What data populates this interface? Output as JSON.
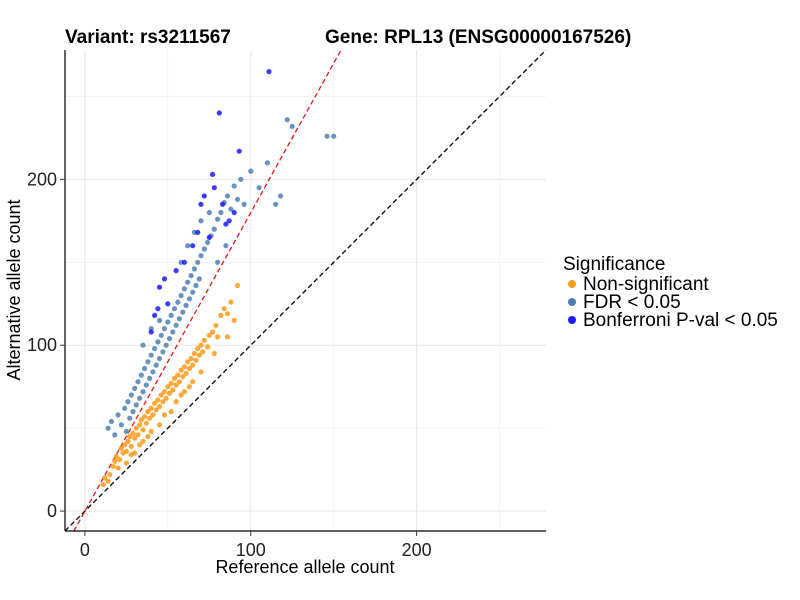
{
  "chart_data": {
    "type": "scatter",
    "title_left": "Variant: rs3211567",
    "title_right": "Gene: RPL13 (ENSG00000167526)",
    "xlabel": "Reference allele count",
    "ylabel": "Alternative allele count",
    "xlim": [
      -12,
      278
    ],
    "ylim": [
      -12,
      278
    ],
    "xticks": [
      0,
      100,
      200
    ],
    "yticks": [
      0,
      100,
      200
    ],
    "grid": true,
    "reference_lines": [
      {
        "name": "diagonal",
        "slope": 1.0,
        "color": "#000000",
        "dash": true
      },
      {
        "name": "fitted",
        "slope": 1.8,
        "color": "#e41a1c",
        "dash": true
      }
    ],
    "legend": {
      "title": "Significance",
      "position": "right",
      "entries": [
        {
          "label": "Non-significant",
          "color": "#ff9a1a"
        },
        {
          "label": "FDR < 0.05",
          "color": "#4f7fb0"
        },
        {
          "label": "Bonferroni P-val < 0.05",
          "color": "#1a1aff"
        }
      ]
    },
    "series": [
      {
        "name": "Non-significant",
        "color": "#ff9a1a",
        "points": [
          [
            11,
            16
          ],
          [
            12,
            20
          ],
          [
            14,
            18
          ],
          [
            15,
            22
          ],
          [
            17,
            27
          ],
          [
            18,
            30
          ],
          [
            19,
            33
          ],
          [
            20,
            26
          ],
          [
            21,
            31
          ],
          [
            22,
            38
          ],
          [
            23,
            35
          ],
          [
            24,
            40
          ],
          [
            25,
            36
          ],
          [
            26,
            42
          ],
          [
            27,
            45
          ],
          [
            28,
            39
          ],
          [
            29,
            47
          ],
          [
            30,
            44
          ],
          [
            31,
            50
          ],
          [
            32,
            46
          ],
          [
            33,
            52
          ],
          [
            34,
            55
          ],
          [
            35,
            49
          ],
          [
            36,
            57
          ],
          [
            37,
            53
          ],
          [
            38,
            60
          ],
          [
            39,
            56
          ],
          [
            40,
            62
          ],
          [
            41,
            58
          ],
          [
            42,
            65
          ],
          [
            43,
            61
          ],
          [
            44,
            67
          ],
          [
            45,
            63
          ],
          [
            46,
            70
          ],
          [
            47,
            66
          ],
          [
            48,
            72
          ],
          [
            49,
            68
          ],
          [
            50,
            75
          ],
          [
            51,
            71
          ],
          [
            52,
            77
          ],
          [
            53,
            73
          ],
          [
            54,
            80
          ],
          [
            55,
            76
          ],
          [
            56,
            82
          ],
          [
            57,
            78
          ],
          [
            58,
            85
          ],
          [
            59,
            81
          ],
          [
            60,
            87
          ],
          [
            61,
            83
          ],
          [
            62,
            90
          ],
          [
            63,
            86
          ],
          [
            64,
            92
          ],
          [
            65,
            88
          ],
          [
            66,
            95
          ],
          [
            67,
            91
          ],
          [
            68,
            98
          ],
          [
            69,
            94
          ],
          [
            70,
            100
          ],
          [
            71,
            96
          ],
          [
            72,
            103
          ],
          [
            74,
            99
          ],
          [
            75,
            106
          ],
          [
            77,
            108
          ],
          [
            79,
            112
          ],
          [
            80,
            105
          ],
          [
            82,
            118
          ],
          [
            84,
            122
          ],
          [
            86,
            119
          ],
          [
            88,
            126
          ],
          [
            90,
            115
          ],
          [
            92,
            136
          ],
          [
            86,
            105
          ],
          [
            60,
            72
          ],
          [
            52,
            60
          ],
          [
            45,
            52
          ],
          [
            38,
            45
          ],
          [
            30,
            35
          ],
          [
            25,
            29
          ],
          [
            35,
            42
          ],
          [
            40,
            48
          ],
          [
            55,
            66
          ],
          [
            65,
            78
          ],
          [
            70,
            84
          ],
          [
            78,
            95
          ],
          [
            33,
            40
          ],
          [
            28,
            34
          ],
          [
            48,
            58
          ],
          [
            58,
            70
          ],
          [
            63,
            75
          ]
        ]
      },
      {
        "name": "FDR < 0.05",
        "color": "#4f7fb0",
        "points": [
          [
            14,
            50
          ],
          [
            16,
            54
          ],
          [
            18,
            46
          ],
          [
            20,
            58
          ],
          [
            22,
            52
          ],
          [
            24,
            62
          ],
          [
            25,
            48
          ],
          [
            26,
            66
          ],
          [
            27,
            56
          ],
          [
            28,
            70
          ],
          [
            29,
            60
          ],
          [
            30,
            74
          ],
          [
            31,
            64
          ],
          [
            32,
            78
          ],
          [
            33,
            68
          ],
          [
            34,
            82
          ],
          [
            35,
            72
          ],
          [
            36,
            86
          ],
          [
            37,
            76
          ],
          [
            38,
            90
          ],
          [
            39,
            80
          ],
          [
            40,
            94
          ],
          [
            41,
            84
          ],
          [
            42,
            98
          ],
          [
            43,
            88
          ],
          [
            44,
            102
          ],
          [
            45,
            92
          ],
          [
            46,
            106
          ],
          [
            47,
            96
          ],
          [
            48,
            110
          ],
          [
            49,
            100
          ],
          [
            50,
            114
          ],
          [
            51,
            104
          ],
          [
            52,
            118
          ],
          [
            53,
            108
          ],
          [
            54,
            122
          ],
          [
            55,
            112
          ],
          [
            56,
            126
          ],
          [
            57,
            116
          ],
          [
            58,
            130
          ],
          [
            59,
            120
          ],
          [
            60,
            134
          ],
          [
            61,
            124
          ],
          [
            62,
            138
          ],
          [
            63,
            128
          ],
          [
            64,
            142
          ],
          [
            65,
            132
          ],
          [
            66,
            146
          ],
          [
            67,
            136
          ],
          [
            68,
            150
          ],
          [
            69,
            140
          ],
          [
            70,
            154
          ],
          [
            72,
            158
          ],
          [
            74,
            162
          ],
          [
            76,
            166
          ],
          [
            78,
            170
          ],
          [
            80,
            176
          ],
          [
            82,
            180
          ],
          [
            84,
            186
          ],
          [
            86,
            190
          ],
          [
            88,
            182
          ],
          [
            90,
            196
          ],
          [
            92,
            188
          ],
          [
            94,
            200
          ],
          [
            96,
            185
          ],
          [
            100,
            205
          ],
          [
            105,
            195
          ],
          [
            110,
            210
          ],
          [
            115,
            185
          ],
          [
            118,
            190
          ],
          [
            122,
            236
          ],
          [
            125,
            232
          ],
          [
            146,
            226
          ],
          [
            150,
            226
          ],
          [
            58,
            150
          ],
          [
            62,
            160
          ],
          [
            66,
            168
          ],
          [
            70,
            175
          ],
          [
            75,
            180
          ],
          [
            80,
            150
          ],
          [
            85,
            160
          ],
          [
            35,
            100
          ],
          [
            40,
            110
          ],
          [
            45,
            115
          ]
        ]
      },
      {
        "name": "Bonferroni P-val < 0.05",
        "color": "#1a1aff",
        "points": [
          [
            111,
            265
          ],
          [
            81,
            240
          ],
          [
            93,
            217
          ],
          [
            77,
            203
          ],
          [
            78,
            195
          ],
          [
            70,
            185
          ],
          [
            72,
            190
          ],
          [
            83,
            185
          ],
          [
            87,
            175
          ],
          [
            90,
            180
          ],
          [
            65,
            160
          ],
          [
            68,
            168
          ],
          [
            55,
            145
          ],
          [
            60,
            150
          ],
          [
            45,
            135
          ],
          [
            48,
            140
          ],
          [
            50,
            125
          ],
          [
            42,
            118
          ],
          [
            44,
            122
          ],
          [
            40,
            108
          ],
          [
            85,
            173
          ],
          [
            75,
            165
          ]
        ]
      }
    ]
  }
}
